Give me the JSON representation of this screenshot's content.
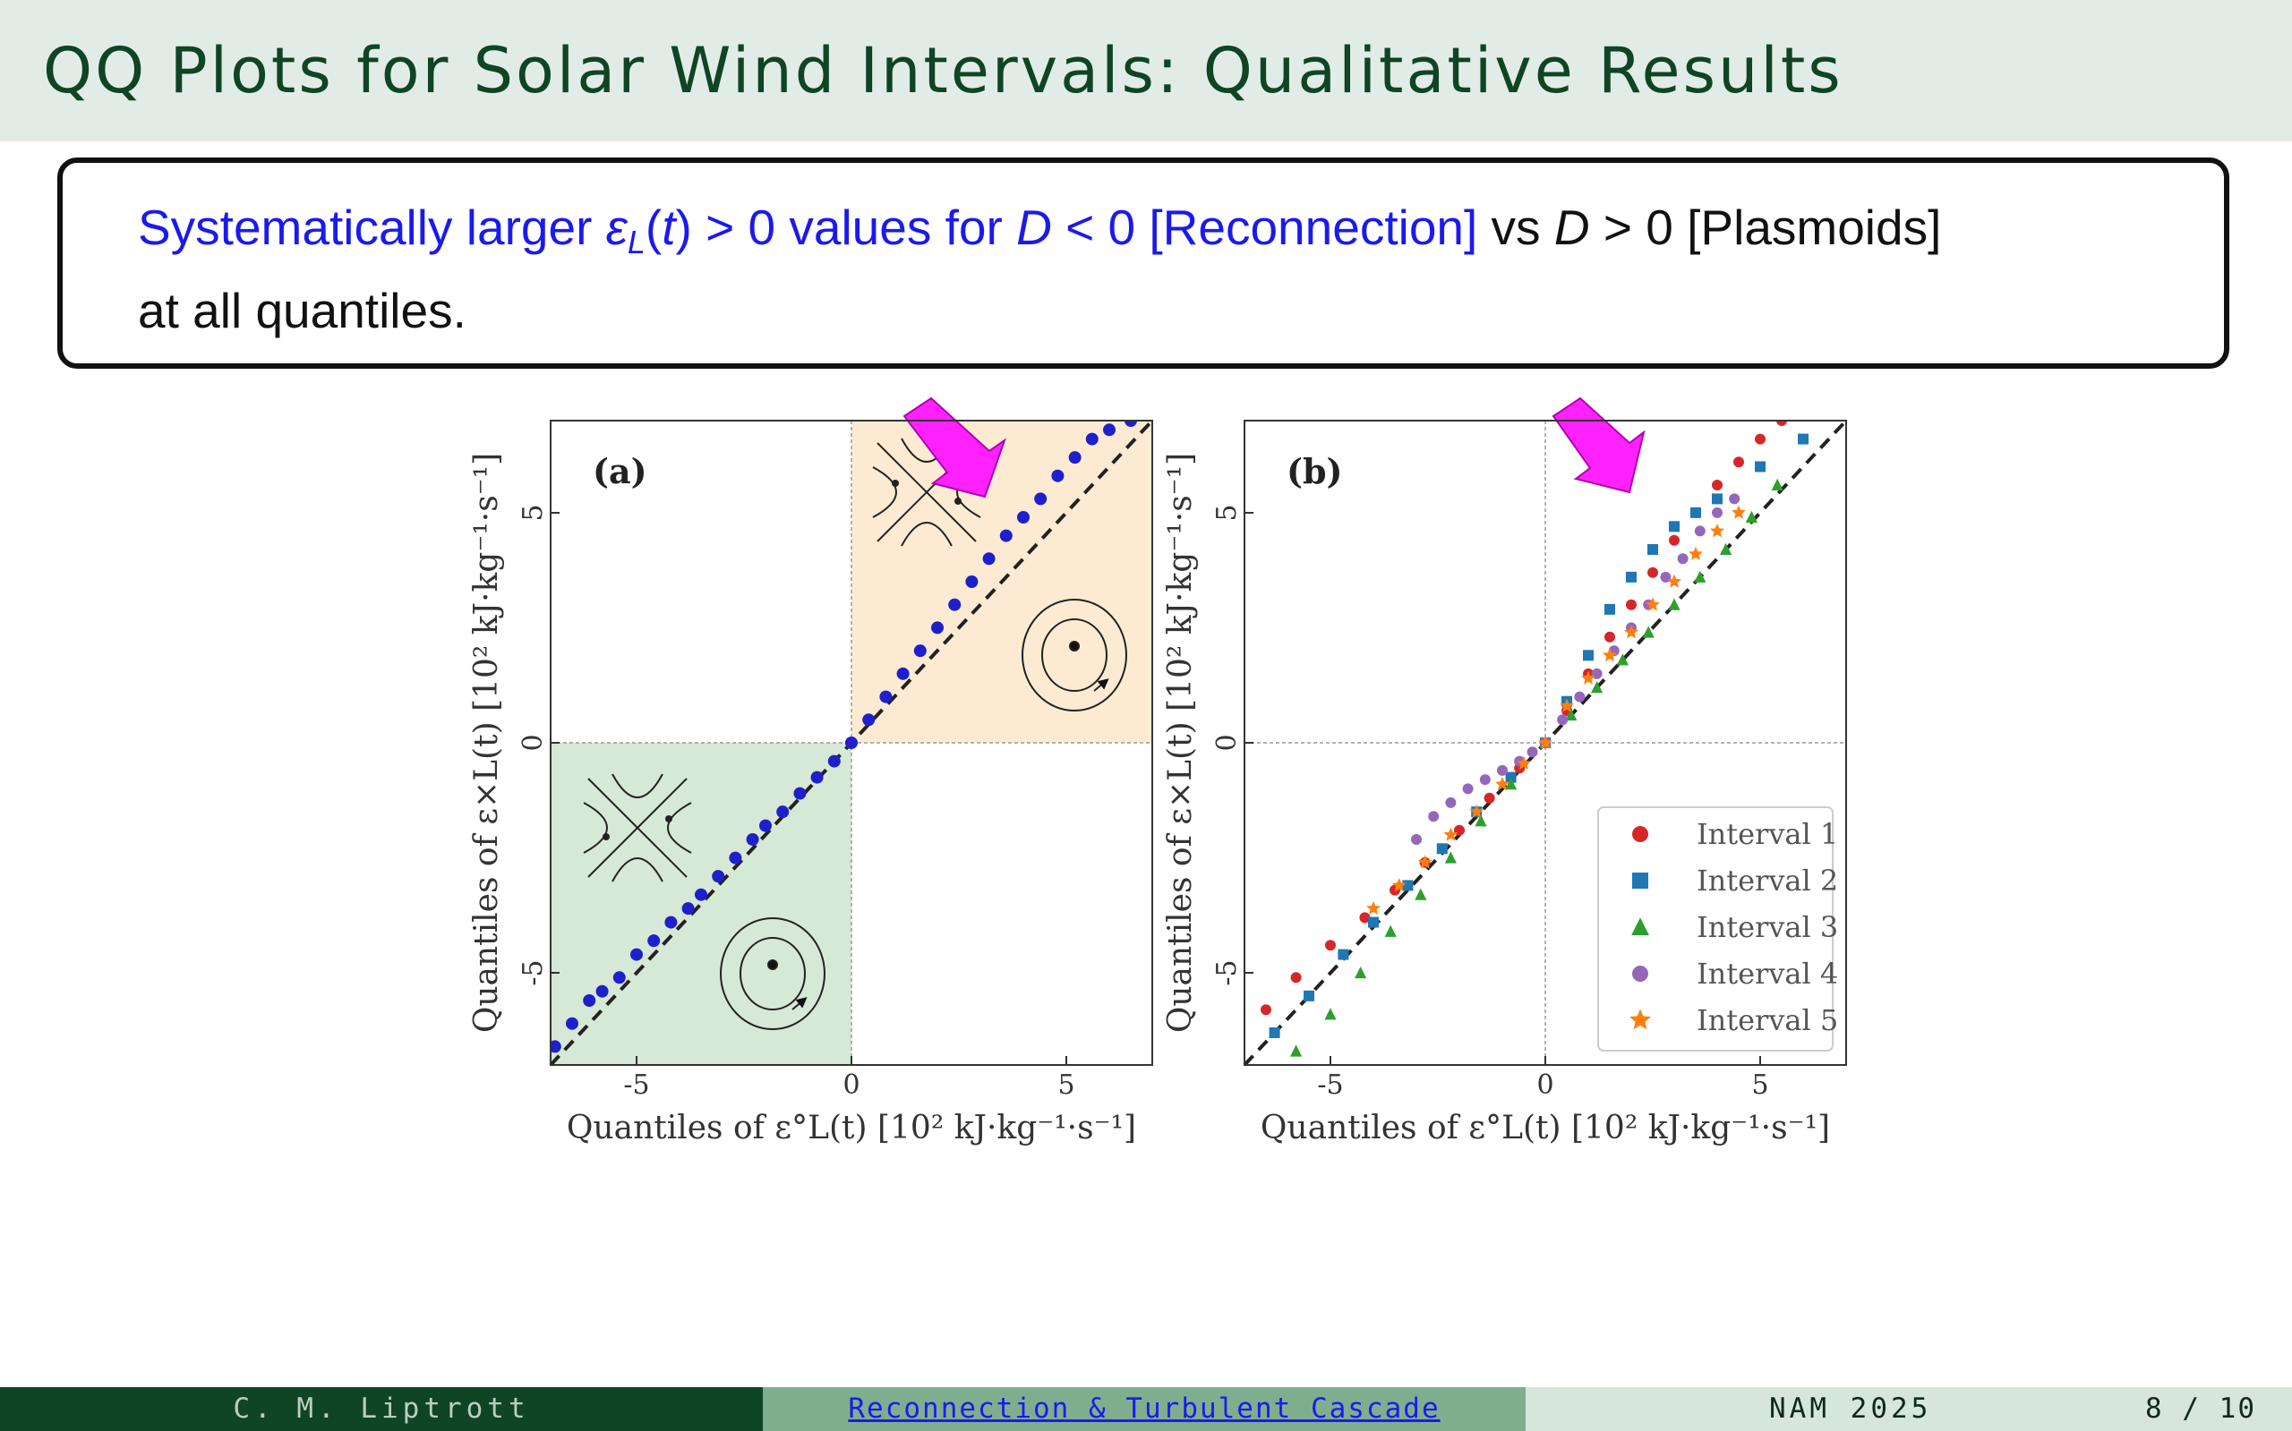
{
  "slide": {
    "title": "QQ Plots for Solar Wind Intervals: Qualitative Results"
  },
  "callout": {
    "t1": "Systematically larger ",
    "eps": "ε",
    "eps_sub": "L",
    "t2": "(",
    "t_var": "t",
    "t3": ") > 0 values for ",
    "d1": "D",
    "t4": " < 0 [Reconnection]",
    "vs": " vs ",
    "d2": "D",
    "t5": " > 0 [Plasmoids]",
    "line2": "at all quantiles."
  },
  "colors": {
    "title_bg": "#e2ece6",
    "title_text": "#0f4424",
    "emphasis_blue": "#1a1aee",
    "arrow_magenta": "#ff22ff",
    "reconnection_shade": "#d6e8d6",
    "plasmoid_shade": "#fcebd2"
  },
  "chart_data": [
    {
      "type": "scatter",
      "panel_label": "(a)",
      "xlabel": "Quantiles of ε°L(t) [10² kJ·kg⁻¹·s⁻¹]",
      "ylabel": "Quantiles of ε×L(t) [10² kJ·kg⁻¹·s⁻¹]",
      "xlim": [
        -7,
        7
      ],
      "ylim": [
        -7,
        7
      ],
      "xticks": [
        "-5",
        "0",
        "5"
      ],
      "yticks": [
        "-5",
        "0",
        "5"
      ],
      "reference_line": "y = x (dashed)",
      "grid": false,
      "series": [
        {
          "color": "#1f1fcc",
          "marker": "circle",
          "x": [
            -6.9,
            -6.5,
            -6.1,
            -5.8,
            -5.4,
            -5.0,
            -4.6,
            -4.2,
            -3.8,
            -3.5,
            -3.1,
            -2.7,
            -2.3,
            -2.0,
            -1.6,
            -1.2,
            -0.8,
            -0.4,
            0.0,
            0.4,
            0.8,
            1.2,
            1.6,
            2.0,
            2.4,
            2.8,
            3.2,
            3.6,
            4.0,
            4.4,
            4.8,
            5.2,
            5.6,
            6.0,
            6.5
          ],
          "y": [
            -6.6,
            -6.1,
            -5.6,
            -5.4,
            -5.1,
            -4.6,
            -4.3,
            -3.9,
            -3.6,
            -3.3,
            -2.9,
            -2.5,
            -2.1,
            -1.8,
            -1.5,
            -1.1,
            -0.75,
            -0.4,
            0.0,
            0.5,
            1.0,
            1.5,
            2.0,
            2.5,
            3.0,
            3.5,
            4.0,
            4.5,
            4.9,
            5.3,
            5.8,
            6.2,
            6.6,
            6.8,
            7.0
          ]
        }
      ]
    },
    {
      "type": "scatter",
      "panel_label": "(b)",
      "xlabel": "Quantiles of ε°L(t) [10² kJ·kg⁻¹·s⁻¹]",
      "ylabel": "Quantiles of ε×L(t) [10² kJ·kg⁻¹·s⁻¹]",
      "xlim": [
        -7,
        7
      ],
      "ylim": [
        -7,
        7
      ],
      "xticks": [
        "-5",
        "0",
        "5"
      ],
      "yticks": [
        "-5",
        "0",
        "5"
      ],
      "reference_line": "y = x (dashed)",
      "grid": false,
      "legend_position": "lower-right",
      "series": [
        {
          "name": "Interval 1",
          "color": "#d62728",
          "marker": "circle",
          "x": [
            -6.5,
            -5.8,
            -5.0,
            -4.2,
            -3.5,
            -2.8,
            -2.0,
            -1.3,
            -0.6,
            0.0,
            0.5,
            1.0,
            1.5,
            2.0,
            2.5,
            3.0,
            3.5,
            4.0,
            4.5,
            5.0,
            5.5
          ],
          "y": [
            -5.8,
            -5.1,
            -4.4,
            -3.8,
            -3.2,
            -2.6,
            -1.9,
            -1.2,
            -0.55,
            0.0,
            0.7,
            1.5,
            2.3,
            3.0,
            3.7,
            4.4,
            5.0,
            5.6,
            6.1,
            6.6,
            7.0
          ]
        },
        {
          "name": "Interval 2",
          "color": "#1f77b4",
          "marker": "square",
          "x": [
            -6.3,
            -5.5,
            -4.7,
            -4.0,
            -3.2,
            -2.4,
            -1.6,
            -0.8,
            0.0,
            0.5,
            1.0,
            1.5,
            2.0,
            2.5,
            3.0,
            3.5,
            4.0,
            5.0,
            6.0
          ],
          "y": [
            -6.3,
            -5.5,
            -4.6,
            -3.9,
            -3.1,
            -2.3,
            -1.5,
            -0.75,
            0.0,
            0.9,
            1.9,
            2.9,
            3.6,
            4.2,
            4.7,
            5.0,
            5.3,
            6.0,
            6.6
          ]
        },
        {
          "name": "Interval 3",
          "color": "#2ca02c",
          "marker": "triangle",
          "x": [
            -5.8,
            -5.0,
            -4.3,
            -3.6,
            -2.9,
            -2.2,
            -1.5,
            -0.8,
            0.0,
            0.6,
            1.2,
            1.8,
            2.4,
            3.0,
            3.6,
            4.2,
            4.8,
            5.4
          ],
          "y": [
            -6.7,
            -5.9,
            -5.0,
            -4.1,
            -3.3,
            -2.5,
            -1.7,
            -0.9,
            0.0,
            0.6,
            1.2,
            1.8,
            2.4,
            3.0,
            3.6,
            4.2,
            4.9,
            5.6
          ]
        },
        {
          "name": "Interval 4",
          "color": "#9467bd",
          "marker": "circle",
          "x": [
            -3.0,
            -2.6,
            -2.2,
            -1.8,
            -1.4,
            -1.0,
            -0.6,
            -0.3,
            0.0,
            0.4,
            0.8,
            1.2,
            1.6,
            2.0,
            2.4,
            2.8,
            3.2,
            3.6,
            4.0,
            4.4
          ],
          "y": [
            -2.1,
            -1.6,
            -1.3,
            -1.0,
            -0.8,
            -0.6,
            -0.4,
            -0.2,
            0.0,
            0.5,
            1.0,
            1.5,
            2.0,
            2.5,
            3.0,
            3.6,
            4.0,
            4.6,
            5.0,
            5.3
          ]
        },
        {
          "name": "Interval 5",
          "color": "#ff7f0e",
          "marker": "star",
          "x": [
            -4.0,
            -3.4,
            -2.8,
            -2.2,
            -1.6,
            -1.0,
            -0.5,
            0.0,
            0.5,
            1.0,
            1.5,
            2.0,
            2.5,
            3.0,
            3.5,
            4.0,
            4.5
          ],
          "y": [
            -3.6,
            -3.1,
            -2.6,
            -2.0,
            -1.5,
            -0.9,
            -0.45,
            0.0,
            0.8,
            1.4,
            1.9,
            2.4,
            3.0,
            3.5,
            4.1,
            4.6,
            5.0
          ]
        }
      ]
    }
  ],
  "footer": {
    "author": "C. M. Liptrott",
    "talk": "Reconnection & Turbulent Cascade",
    "conference": "NAM 2025",
    "page": "8 / 10"
  }
}
